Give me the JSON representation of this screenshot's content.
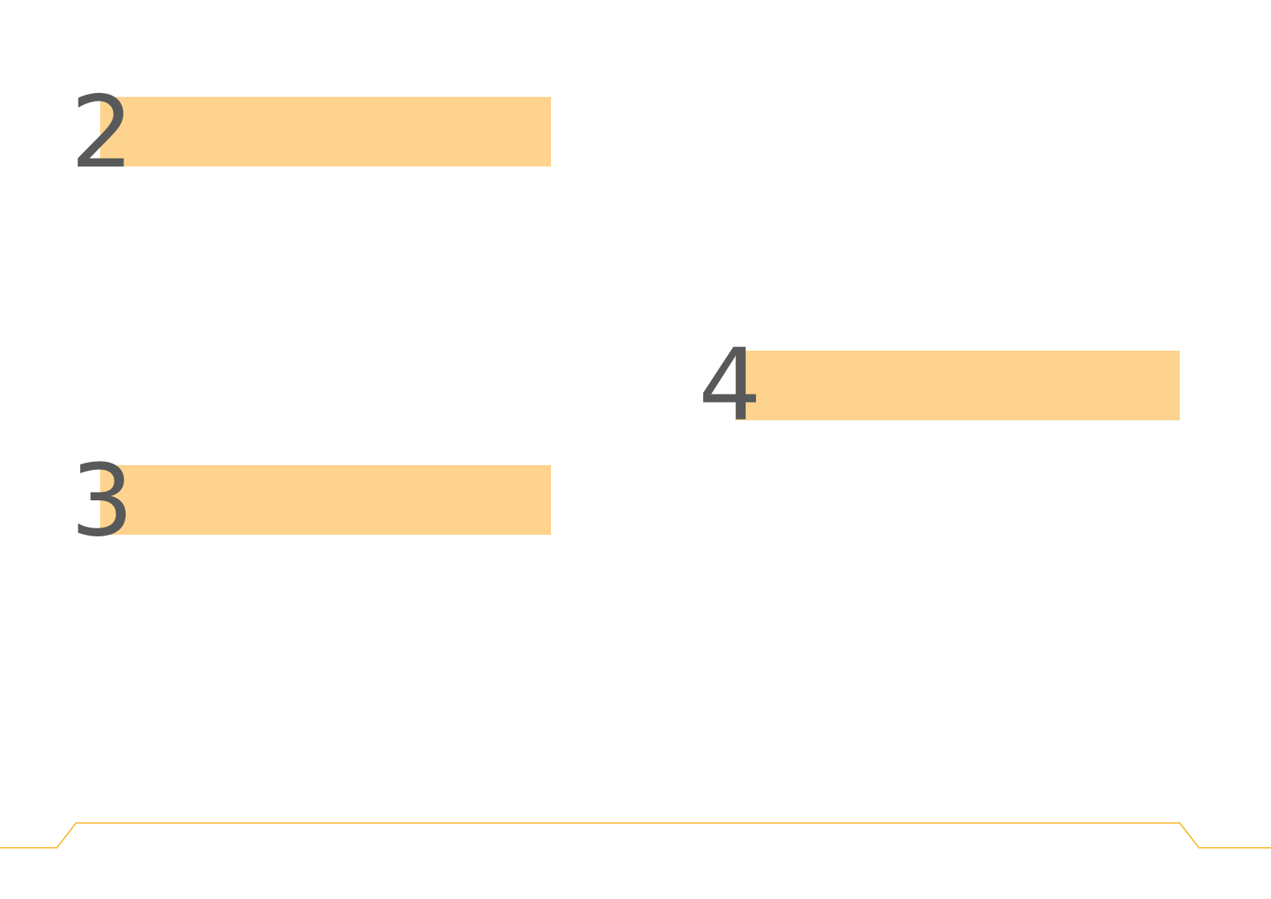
{
  "sections": [
    {
      "number": "2"
    },
    {
      "number": "3"
    },
    {
      "number": "4"
    }
  ],
  "colors": {
    "heading_bar": "#FDD38E",
    "number_text": "#58595B",
    "footer_line": "#F7B21B"
  }
}
